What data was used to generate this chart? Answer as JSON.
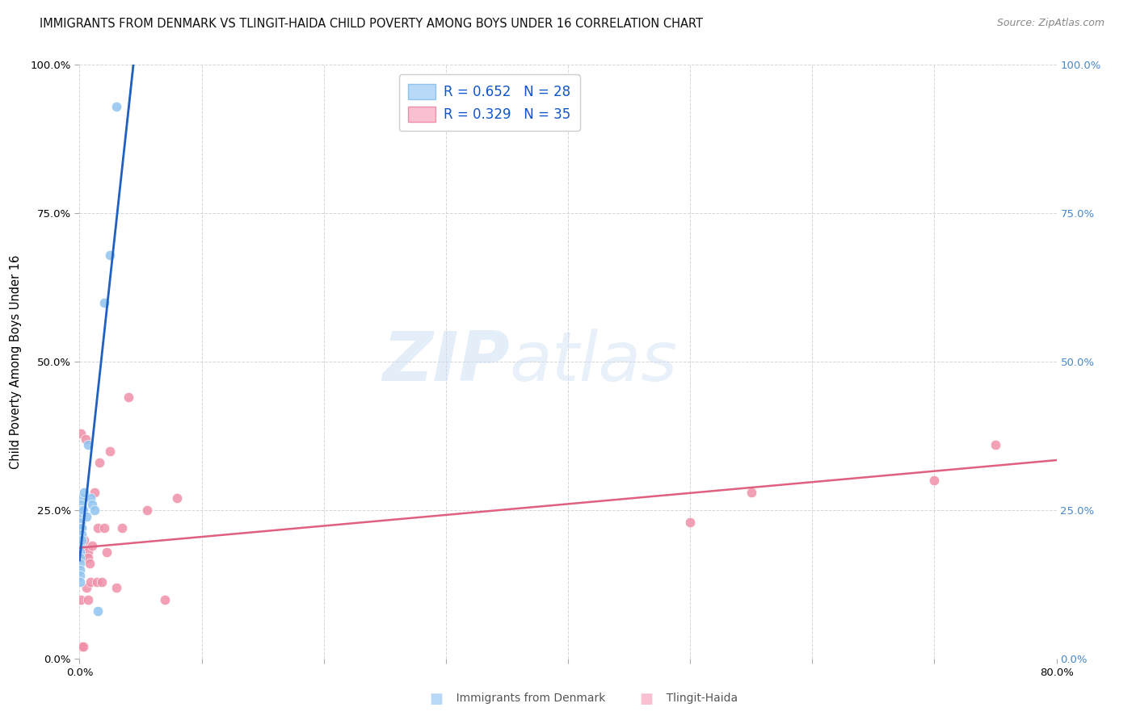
{
  "title": "IMMIGRANTS FROM DENMARK VS TLINGIT-HAIDA CHILD POVERTY AMONG BOYS UNDER 16 CORRELATION CHART",
  "source": "Source: ZipAtlas.com",
  "ylabel": "Child Poverty Among Boys Under 16",
  "xlim": [
    0.0,
    0.8
  ],
  "ylim": [
    0.0,
    1.0
  ],
  "denmark_scatter_x": [
    0.0005,
    0.0005,
    0.0005,
    0.0005,
    0.0005,
    0.0005,
    0.0005,
    0.0005,
    0.001,
    0.001,
    0.001,
    0.001,
    0.001,
    0.001,
    0.002,
    0.002,
    0.002,
    0.003,
    0.004,
    0.006,
    0.007,
    0.009,
    0.01,
    0.012,
    0.015,
    0.02,
    0.025,
    0.03
  ],
  "denmark_scatter_y": [
    0.2,
    0.19,
    0.18,
    0.17,
    0.16,
    0.15,
    0.14,
    0.13,
    0.27,
    0.26,
    0.25,
    0.24,
    0.23,
    0.22,
    0.22,
    0.21,
    0.2,
    0.25,
    0.28,
    0.24,
    0.36,
    0.27,
    0.26,
    0.25,
    0.08,
    0.6,
    0.68,
    0.93
  ],
  "tlingit_scatter_x": [
    0.001,
    0.001,
    0.001,
    0.001,
    0.002,
    0.002,
    0.003,
    0.003,
    0.004,
    0.005,
    0.006,
    0.007,
    0.007,
    0.007,
    0.008,
    0.009,
    0.01,
    0.012,
    0.014,
    0.015,
    0.016,
    0.018,
    0.02,
    0.022,
    0.025,
    0.03,
    0.035,
    0.04,
    0.055,
    0.07,
    0.08,
    0.5,
    0.55,
    0.7,
    0.75
  ],
  "tlingit_scatter_y": [
    0.02,
    0.1,
    0.17,
    0.38,
    0.17,
    0.02,
    0.02,
    0.19,
    0.2,
    0.37,
    0.12,
    0.18,
    0.17,
    0.1,
    0.16,
    0.13,
    0.19,
    0.28,
    0.13,
    0.22,
    0.33,
    0.13,
    0.22,
    0.18,
    0.35,
    0.12,
    0.22,
    0.44,
    0.25,
    0.1,
    0.27,
    0.23,
    0.28,
    0.3,
    0.36
  ],
  "denmark_color": "#90c4f0",
  "tlingit_color": "#f090a8",
  "denmark_line_color": "#2060c0",
  "tlingit_line_color": "#e06080",
  "denmark_R": 0.652,
  "denmark_N": 28,
  "tlingit_R": 0.329,
  "tlingit_N": 35,
  "background_color": "#ffffff",
  "grid_color": "#cccccc",
  "scatter_size": 80,
  "right_axis_color": "#4488cc",
  "legend_patch1_face": "#b8d8f8",
  "legend_patch2_face": "#f8c0d0",
  "legend_patch1_edge": "#90c4f0",
  "legend_patch2_edge": "#f090a8"
}
